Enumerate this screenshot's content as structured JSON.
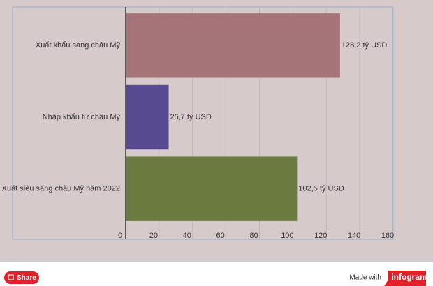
{
  "chart_data": {
    "type": "bar",
    "orientation": "horizontal",
    "categories": [
      "Xuất khẩu sang châu Mỹ",
      "Nhập khẩu từ châu Mỹ",
      "Xuất siêu sang châu Mỹ năm 2022"
    ],
    "values": [
      128.2,
      25.7,
      102.5
    ],
    "value_labels": [
      "128,2 tỷ USD",
      "25,7 tỷ USD",
      "102,5 tỷ USD"
    ],
    "colors": [
      "#a47478",
      "#574a91",
      "#6b7b3f"
    ],
    "xlim": [
      0,
      160
    ],
    "xticks": [
      0,
      20,
      40,
      60,
      80,
      100,
      120,
      140,
      160
    ],
    "grid": true
  },
  "footer": {
    "share": "Share",
    "made_with": "Made with",
    "brand": "infogram"
  }
}
